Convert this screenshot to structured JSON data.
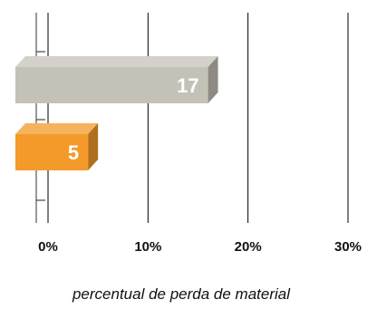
{
  "chart_data": {
    "type": "bar",
    "orientation": "horizontal",
    "style": "3d",
    "categories": [
      "",
      ""
    ],
    "values": [
      17,
      5
    ],
    "data_labels": [
      "17",
      "5"
    ],
    "x_ticks": [
      "0%",
      "10%",
      "20%",
      "30%"
    ],
    "xlim": [
      0,
      30
    ],
    "xlabel": "percentual de perda de material",
    "grid": "vertical",
    "colors": {
      "bar_1": "#c4c1b7",
      "bar_2": "#f39a2a"
    }
  }
}
